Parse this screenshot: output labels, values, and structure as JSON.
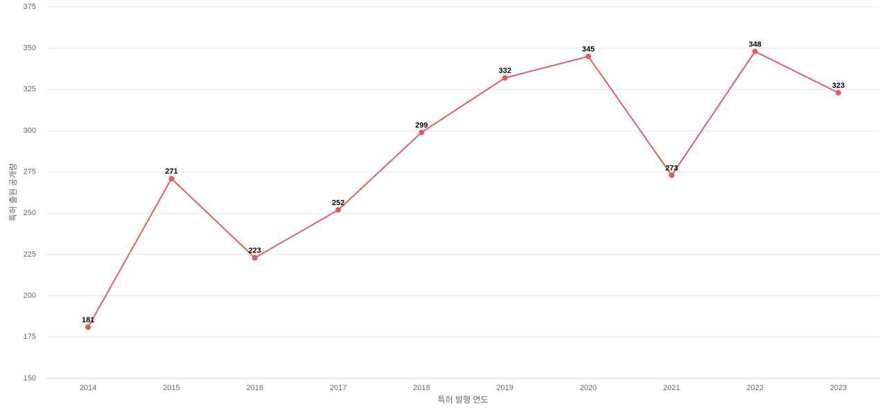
{
  "chart_data": {
    "type": "line",
    "x_label": "특허 발행 연도",
    "y_label": "특허 출원 공개량",
    "categories": [
      "2014",
      "2015",
      "2016",
      "2017",
      "2018",
      "2019",
      "2020",
      "2021",
      "2022",
      "2023"
    ],
    "series": [
      {
        "name": "특허 출원 공개량",
        "color": "#e85a5a",
        "values": [
          181,
          271,
          223,
          252,
          299,
          332,
          345,
          273,
          348,
          323
        ]
      }
    ],
    "ylim": [
      150,
      375
    ],
    "yticks": [
      150,
      175,
      200,
      225,
      250,
      275,
      300,
      325,
      350,
      375
    ],
    "grid": true
  }
}
